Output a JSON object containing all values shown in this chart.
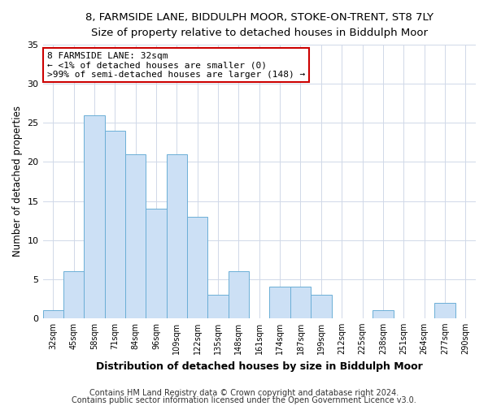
{
  "title": "8, FARMSIDE LANE, BIDDULPH MOOR, STOKE-ON-TRENT, ST8 7LY",
  "subtitle": "Size of property relative to detached houses in Biddulph Moor",
  "xlabel": "Distribution of detached houses by size in Biddulph Moor",
  "ylabel": "Number of detached properties",
  "bar_labels": [
    "32sqm",
    "45sqm",
    "58sqm",
    "71sqm",
    "84sqm",
    "96sqm",
    "109sqm",
    "122sqm",
    "135sqm",
    "148sqm",
    "161sqm",
    "174sqm",
    "187sqm",
    "199sqm",
    "212sqm",
    "225sqm",
    "238sqm",
    "251sqm",
    "264sqm",
    "277sqm",
    "290sqm"
  ],
  "bar_values": [
    1,
    6,
    26,
    24,
    21,
    14,
    21,
    13,
    3,
    6,
    0,
    4,
    4,
    3,
    0,
    0,
    1,
    0,
    0,
    2,
    0
  ],
  "bar_color": "#cce0f5",
  "bar_edge_color": "#6baed6",
  "annotation_line1": "8 FARMSIDE LANE: 32sqm",
  "annotation_line2": "← <1% of detached houses are smaller (0)",
  "annotation_line3": ">99% of semi-detached houses are larger (148) →",
  "annotation_box_color": "#ffffff",
  "annotation_box_edge_color": "#cc0000",
  "ylim": [
    0,
    35
  ],
  "yticks": [
    0,
    5,
    10,
    15,
    20,
    25,
    30,
    35
  ],
  "grid_color": "#d0d8e8",
  "footer_line1": "Contains HM Land Registry data © Crown copyright and database right 2024.",
  "footer_line2": "Contains public sector information licensed under the Open Government Licence v3.0.",
  "bg_color": "#ffffff"
}
